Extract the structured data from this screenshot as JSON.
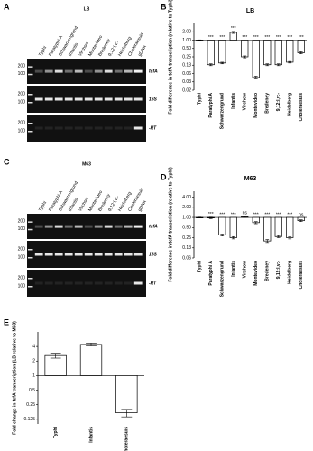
{
  "panel_letters": [
    "A",
    "B",
    "C",
    "D",
    "E"
  ],
  "gels": [
    {
      "title": "LB",
      "lanes": [
        "Typhi",
        "Paratyphi A",
        "Schwarzengrund",
        "Infantis",
        "Virchow",
        "Montevideo",
        "Bredeney",
        "9,12:l,v:-",
        "Heidelberg",
        "Choleraesuis",
        "gDNA"
      ],
      "rows": [
        "tcfA",
        "16S",
        "-RT"
      ],
      "markers": [
        "200",
        "100"
      ]
    },
    {
      "title": "M63",
      "lanes": [
        "Typhi",
        "Paratyphi A",
        "Schwarzengrund",
        "Infantis",
        "Virchow",
        "Montevideo",
        "Bredeney",
        "9,12:l,v:-",
        "Heidelberg",
        "Choleraesuis",
        "gDNA"
      ],
      "rows": [
        "tcfA",
        "16S",
        "-RT"
      ],
      "markers": [
        "200",
        "100"
      ]
    }
  ],
  "chart_data": [
    {
      "type": "bar",
      "title": "LB",
      "ylabel": "Fold  difference in tcfA transcription (relative to Typhi)",
      "yscale": "log",
      "color": "#ffffff",
      "categories": [
        "Typhi",
        "Paratyphi A",
        "Schwarzengrund",
        "Infantis",
        "Virchow",
        "Montevideo",
        "Bredeney",
        "9,12:l,v:-",
        "Heidelberg",
        "Choleraesuis"
      ],
      "values": [
        1,
        0.13,
        0.15,
        1.9,
        0.25,
        0.045,
        0.13,
        0.13,
        0.16,
        0.35
      ],
      "errors": [
        0.02,
        0.01,
        0.01,
        0.15,
        0.02,
        0.005,
        0.01,
        0.01,
        0.01,
        0.03
      ],
      "significance": [
        null,
        "***",
        "***",
        "***",
        "***",
        "***",
        "***",
        "***",
        "***",
        "***"
      ],
      "ylim": [
        0.015625,
        4
      ],
      "yticks": [
        {
          "value": 2,
          "label": "2.00"
        },
        {
          "value": 1,
          "label": "1.00"
        },
        {
          "value": 0.5,
          "label": "0.50"
        },
        {
          "value": 0.25,
          "label": "0.25"
        },
        {
          "value": 0.125,
          "label": "0.13"
        },
        {
          "value": 0.0625,
          "label": "0.06"
        },
        {
          "value": 0.03125,
          "label": "0.03"
        },
        {
          "value": 0.015625,
          "label": "0.02"
        }
      ]
    },
    {
      "type": "bar",
      "title": "M63",
      "ylabel": "Fold  difference in tcfA transcription (relative to Typhi)",
      "yscale": "log",
      "color": "#ffffff",
      "categories": [
        "Typhi",
        "Paratyphi A",
        "Schwarzengrund",
        "Infantis",
        "Virchow",
        "Montevideo",
        "Bredeney",
        "9,12:l,v:-",
        "Heidelberg",
        "Choleraesuis"
      ],
      "values": [
        1,
        0.97,
        0.3,
        0.25,
        1.05,
        0.7,
        0.2,
        0.27,
        0.25,
        0.8
      ],
      "errors": [
        0.02,
        0.05,
        0.02,
        0.02,
        0.06,
        0.05,
        0.02,
        0.02,
        0.02,
        0.05
      ],
      "significance": [
        null,
        "***",
        "***",
        "***",
        "ns",
        "***",
        "***",
        "***",
        "***",
        "ns"
      ],
      "ylim": [
        0.0625,
        6
      ],
      "yticks": [
        {
          "value": 4,
          "label": "4.00"
        },
        {
          "value": 2,
          "label": "2.00"
        },
        {
          "value": 1,
          "label": "1.00"
        },
        {
          "value": 0.5,
          "label": "0.50"
        },
        {
          "value": 0.25,
          "label": "0.25"
        },
        {
          "value": 0.125,
          "label": "0.13"
        },
        {
          "value": 0.0625,
          "label": "0.06"
        }
      ]
    },
    {
      "type": "bar",
      "ylabel": "Fold change in tcfA transcription (LB relative to M63)",
      "yscale": "log",
      "color": "#ffffff",
      "categories": [
        "Typhi",
        "Infantis",
        "Choleraesuis"
      ],
      "values": [
        2.6,
        4.4,
        0.17
      ],
      "errors": [
        0.3,
        0.3,
        0.03
      ],
      "ylim": [
        0.1,
        8
      ],
      "yticks": [
        4,
        2,
        1,
        0.5,
        0.25,
        0.125
      ]
    }
  ]
}
